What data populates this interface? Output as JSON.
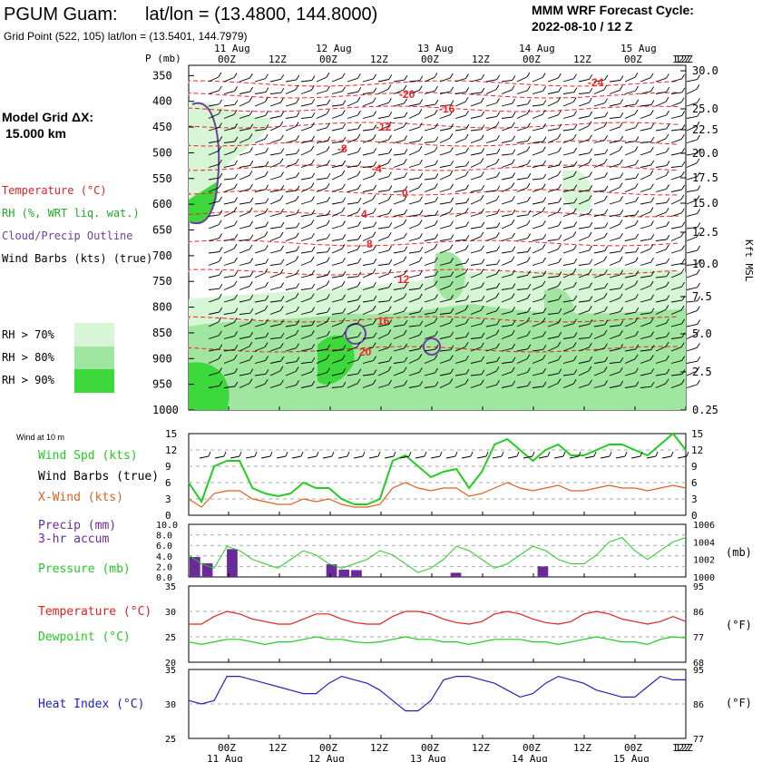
{
  "header": {
    "station": "PGUM Guam:",
    "latlon": "lat/lon = (13.4800, 144.8000)",
    "grid_point": "Grid Point (522, 105) lat/lon = (13.5401, 144.7979)",
    "model_title": "MMM WRF Forecast Cycle:",
    "cycle": "2022-08-10 / 12  Z"
  },
  "legend": {
    "model_grid": "Model Grid ΔX:",
    "grid_km": "15.000 km",
    "temperature": "Temperature (°C)",
    "rh": "RH (%, WRT liq. wat.)",
    "cloud": "Cloud/Precip Outline",
    "wind_barbs": "Wind Barbs (kts) (true)",
    "rh70": "RH > 70%",
    "rh80": "RH > 80%",
    "rh90": "RH > 90%",
    "colors": {
      "rh70": "#d6f6d6",
      "rh80": "#a0e6a0",
      "rh90": "#3cd83c",
      "temp": "#ee2222",
      "cloud": "#7040a0"
    }
  },
  "time_axis": {
    "days": [
      "11 Aug",
      "12 Aug",
      "13 Aug",
      "14 Aug",
      "15 Aug"
    ],
    "hours": [
      "00Z",
      "12Z",
      "00Z",
      "12Z",
      "00Z",
      "12Z",
      "00Z",
      "12Z",
      "00Z",
      "12Z"
    ]
  },
  "chart_data": [
    {
      "type": "heatmap",
      "panel": "sounding",
      "ylabel": "P (mb)",
      "y2label": "Kft MSL",
      "pressure_levels": [
        350,
        400,
        450,
        500,
        550,
        600,
        650,
        700,
        750,
        800,
        850,
        900,
        950,
        1000
      ],
      "kft_levels": [
        "30.0",
        "25.0",
        "22.5",
        "20.0",
        "17.5",
        "15.0",
        "12.5",
        "10.0",
        "7.5",
        "5.0",
        "2.5",
        "0.25"
      ],
      "temperature_labels": [
        "-24",
        "-20",
        "-16",
        "-12",
        "-8",
        "-4",
        "0",
        "4",
        "8",
        "12",
        "16",
        "20"
      ]
    },
    {
      "type": "line",
      "panel": "wind",
      "title": "Wind at 10 m",
      "series": [
        {
          "name": "Wind Spd (kts)",
          "color": "#22cc22",
          "values": [
            6,
            2.5,
            9,
            10,
            10,
            5,
            4,
            3.5,
            4,
            6,
            5,
            5,
            3,
            2,
            2,
            3,
            10,
            11,
            9,
            7,
            8,
            8.5,
            5,
            8,
            13,
            14,
            12,
            10,
            12,
            13,
            11,
            11,
            12,
            13,
            13,
            12,
            11,
            13,
            15,
            12
          ]
        },
        {
          "name": "X-Wind (kts)",
          "color": "#e06020",
          "values": [
            3,
            1.5,
            4,
            4.5,
            4.5,
            3,
            2.5,
            2,
            2,
            3,
            2.5,
            3,
            2,
            1.5,
            1.5,
            2,
            5,
            6,
            5,
            4.5,
            5,
            5,
            3.5,
            4,
            5,
            6,
            5,
            4.5,
            5,
            5.5,
            4.5,
            4.5,
            5,
            5.5,
            5,
            5,
            4.5,
            5,
            5.5,
            5
          ]
        }
      ],
      "labels": {
        "spd": "Wind Spd (kts)",
        "barbs": "Wind Barbs (true)",
        "xwind": "X-Wind (kts)"
      },
      "yticks": [
        "15",
        "12",
        "9",
        "6",
        "3",
        "0"
      ]
    },
    {
      "type": "bar",
      "panel": "precip_pressure",
      "labels": {
        "precip": "Precip (mm)",
        "accum": "3-hr accum",
        "pressure": "Pressure (mb)",
        "right_unit": "(mb)"
      },
      "precip_values": [
        3.8,
        2.6,
        0,
        5.3,
        0,
        0,
        0,
        0,
        0,
        0,
        0,
        2.4,
        1.4,
        1.3,
        0,
        0,
        0,
        0,
        0,
        0,
        0,
        0.8,
        0,
        0,
        0,
        0,
        0,
        0,
        2.0,
        0,
        0,
        0,
        0,
        0,
        0,
        0,
        0,
        0,
        0,
        0
      ],
      "pressure_series": [
        1002.5,
        1001.5,
        1001,
        1003.5,
        1003,
        1002,
        1001.5,
        1001,
        1002,
        1003,
        1002.5,
        1001.5,
        1001,
        1001.5,
        1002,
        1003,
        1002.5,
        1001.5,
        1000.5,
        1001,
        1002,
        1003.5,
        1003,
        1002,
        1001,
        1001.5,
        1002.5,
        1003.5,
        1003,
        1002,
        1001.5,
        1001.5,
        1002.5,
        1004,
        1004.5,
        1003,
        1002,
        1003,
        1004,
        1004.5
      ],
      "y_left": [
        "10.0",
        "8.0",
        "6.0",
        "4.0",
        "2.0",
        "0.0"
      ],
      "y_right": [
        "1006",
        "1004",
        "1002",
        "1000"
      ],
      "color_precip": "#6a2a98",
      "color_pressure": "#22cc22"
    },
    {
      "type": "line",
      "panel": "temp_dewpoint",
      "labels": {
        "temp": "Temperature (°C)",
        "dew": "Dewpoint (°C)",
        "unit": "(°F)"
      },
      "temperature": [
        27.5,
        27.5,
        29,
        30,
        29.5,
        28.5,
        28,
        27.5,
        27.5,
        28.5,
        29.5,
        29.5,
        28.5,
        27.8,
        27.5,
        27.5,
        29,
        30,
        30,
        29.5,
        28.5,
        27.8,
        27.5,
        28,
        29.5,
        30,
        29.5,
        28.5,
        27.8,
        27.5,
        28,
        29.5,
        30,
        29.5,
        28.5,
        28,
        27.5,
        28,
        29,
        28
      ],
      "dewpoint": [
        24,
        23.5,
        24,
        24.5,
        24.5,
        24,
        23.5,
        24,
        24,
        24.5,
        25,
        24.5,
        24.5,
        24,
        23.8,
        24,
        24.5,
        25,
        24.5,
        24.5,
        24,
        24,
        23.5,
        24,
        24.5,
        24.5,
        24.5,
        24,
        24,
        23.5,
        24,
        24.5,
        25,
        24.5,
        24,
        24,
        23.5,
        24.5,
        25,
        24.8
      ],
      "y_left": [
        "35",
        "30",
        "25",
        "20"
      ],
      "y_right": [
        "95",
        "86",
        "77",
        "68"
      ],
      "color_temp": "#dd2222",
      "color_dew": "#22cc22"
    },
    {
      "type": "line",
      "panel": "heat_index",
      "labels": {
        "title": "Heat Index (°C)",
        "unit": "(°F)"
      },
      "heat_index": [
        30.5,
        30,
        30.5,
        34,
        34,
        33.5,
        33,
        32.5,
        32,
        31.5,
        31.5,
        33,
        34,
        33.5,
        33,
        32,
        30.5,
        29,
        29,
        30.5,
        33.5,
        34,
        34,
        33.5,
        33,
        32,
        31,
        31.5,
        33,
        34,
        33.5,
        33,
        32,
        31.5,
        31,
        31,
        32.5,
        34,
        33.5,
        33.5
      ],
      "y_left": [
        "35",
        "30",
        "25"
      ],
      "y_right": [
        "95",
        "86",
        "77"
      ],
      "color": "#2222bb"
    }
  ]
}
